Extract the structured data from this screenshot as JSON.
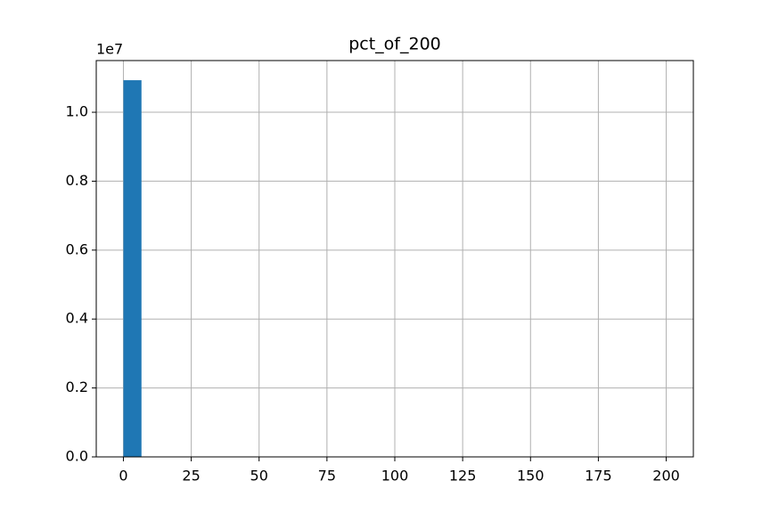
{
  "chart_data": {
    "type": "histogram",
    "title": "pct_of_200",
    "bins": [
      0,
      6.6667,
      13.3333,
      20,
      26.6667,
      33.3333,
      40,
      46.6667,
      53.3333,
      60,
      66.6667,
      73.3333,
      80,
      86.6667,
      93.3333,
      100,
      106.6667,
      113.3333,
      120,
      126.6667,
      133.3333,
      140,
      146.6667,
      153.3333,
      160,
      166.6667,
      173.3333,
      180,
      186.6667,
      193.3333,
      200
    ],
    "values": [
      10930000,
      0,
      0,
      0,
      0,
      0,
      0,
      0,
      0,
      0,
      0,
      0,
      0,
      0,
      0,
      0,
      0,
      0,
      0,
      0,
      0,
      0,
      0,
      0,
      0,
      0,
      0,
      0,
      0,
      0
    ],
    "color": "#1f77b4",
    "xlim": [
      -10,
      210
    ],
    "xticks": [
      0,
      25,
      50,
      75,
      100,
      125,
      150,
      175,
      200
    ],
    "ylim": [
      0,
      11500000
    ],
    "yticks": [
      {
        "value": 0,
        "label": "0.0"
      },
      {
        "value": 2000000,
        "label": "0.2"
      },
      {
        "value": 4000000,
        "label": "0.4"
      },
      {
        "value": 6000000,
        "label": "0.6"
      },
      {
        "value": 8000000,
        "label": "0.8"
      },
      {
        "value": 10000000,
        "label": "1.0"
      }
    ],
    "y_offset_label": "1e7",
    "grid": true
  }
}
